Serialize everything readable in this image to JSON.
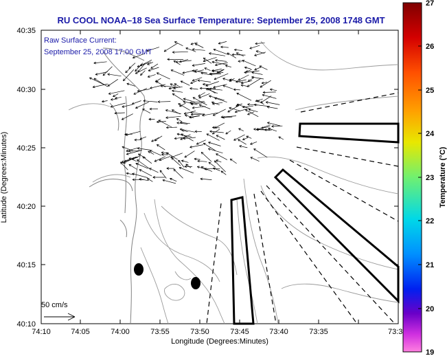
{
  "title": "RU COOL  NOAA–18  Sea Surface Temperature:  September 25, 2008 1748 GMT",
  "annotation": {
    "line1": "Raw Surface Current:",
    "line2": "September 25, 2008 17:00 GMT"
  },
  "scale_label": "50 cm/s",
  "axes": {
    "xlabel": "Longitude (Degrees:Minutes)",
    "ylabel": "Latitude (Degrees:Minutes)",
    "x_ticks": [
      "74:10",
      "74:05",
      "74:00",
      "73:55",
      "73:50",
      "73:45",
      "73:40",
      "73:35",
      "73:3"
    ],
    "y_ticks": [
      "40:35",
      "40:30",
      "40:25",
      "40:20",
      "40:15",
      "40:10"
    ]
  },
  "colorbar": {
    "label": "Temperature (°C)",
    "min": 19,
    "max": 27,
    "ticks": [
      "27",
      "26",
      "25",
      "24",
      "23",
      "22",
      "21",
      "20",
      "19"
    ]
  },
  "colors": {
    "title": "#1a1aa8",
    "coast": "#808080",
    "bathymetry": "#9a9a9a",
    "vectors": "#000000"
  }
}
